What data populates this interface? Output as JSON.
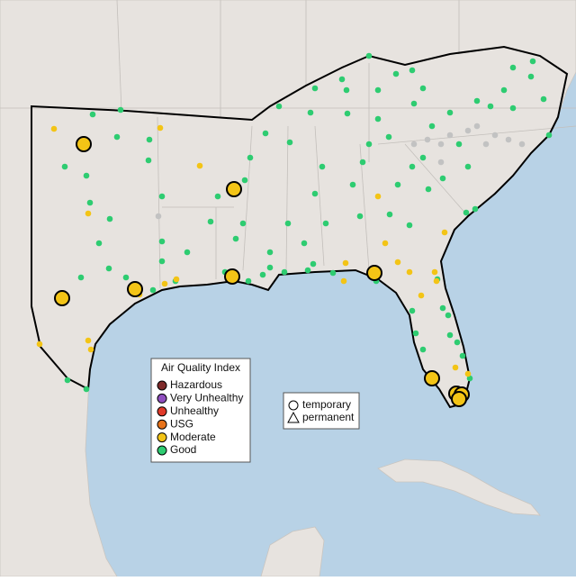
{
  "legend": {
    "title": "Air Quality Index",
    "items": [
      {
        "label": "Hazardous",
        "color": "#7e2a2a"
      },
      {
        "label": "Very Unhealthy",
        "color": "#8f4fbf"
      },
      {
        "label": "Unhealthy",
        "color": "#e03a2a"
      },
      {
        "label": "USG",
        "color": "#e8731a"
      },
      {
        "label": "Moderate",
        "color": "#f3c416"
      },
      {
        "label": "Good",
        "color": "#2ecc71"
      }
    ]
  },
  "shape_legend": {
    "temporary": "temporary",
    "permanent": "permanent"
  }
}
